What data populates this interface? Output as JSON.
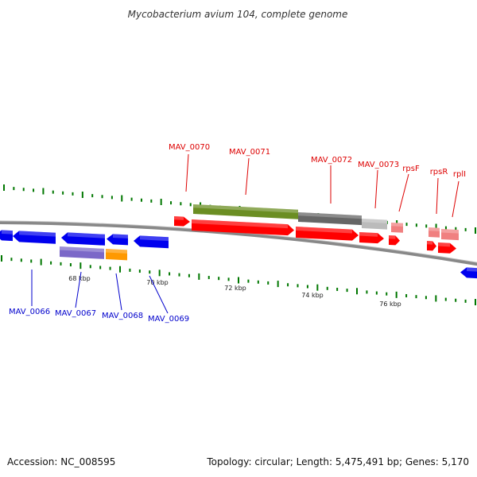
{
  "title": "Mycobacterium avium 104, complete genome",
  "footer": {
    "accession": "Accession: NC_008595",
    "info": "Topology: circular; Length: 5,475,491 bp; Genes: 5,170"
  },
  "colors": {
    "forward_label": "#dd0000",
    "reverse_label": "#0000cc",
    "forward_gene": "#ff0000",
    "forward_gene_light": "#f08080",
    "reverse_gene": "#0000ee",
    "tick": "#007700",
    "backbone": "#888888"
  },
  "scale_labels": [
    "68 kbp",
    "70 kbp",
    "72 kbp",
    "74 kbp",
    "76 kbp"
  ],
  "forward_labels": [
    "MAV_0070",
    "MAV_0071",
    "MAV_0072",
    "MAV_0073",
    "rpsF",
    "rpsR",
    "rplI"
  ],
  "reverse_labels": [
    "MAV_0066",
    "MAV_0067",
    "MAV_0068",
    "MAV_0069"
  ]
}
